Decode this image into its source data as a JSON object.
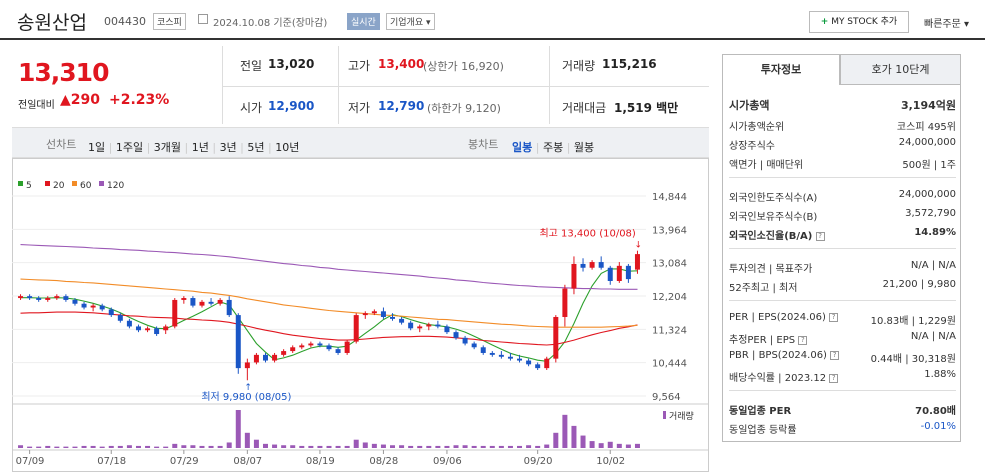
{
  "header": {
    "name": "송원산업",
    "code": "004430",
    "market": "코스피",
    "date_text": "2024.10.08 기준(장마감)",
    "realtime": "실시간",
    "corp_overview": "기업개요 ▾",
    "mystock_plus": "+",
    "mystock": "MY STOCK 추가",
    "quick_order": "빠른주문 ▾"
  },
  "quote": {
    "price": "13,310",
    "change_label": "전일대비",
    "change_value": "▲290",
    "change_pct": "+2.23%",
    "prev_label": "전일",
    "prev": "13,020",
    "high_label": "고가",
    "high": "13,400",
    "upper_limit": "(상한가 16,920)",
    "volume_label": "거래량",
    "volume": "115,216",
    "open_label": "시가",
    "open": "12,900",
    "low_label": "저가",
    "low": "12,790",
    "lower_limit": "(하한가 9,120)",
    "amount_label": "거래대금",
    "amount": "1,519 백만"
  },
  "period_bar": {
    "line_label": "선차트",
    "line_items": [
      "1일",
      "1주일",
      "3개월",
      "1년",
      "3년",
      "5년",
      "10년"
    ],
    "candle_label": "봉차트",
    "candle_items": [
      "일봉",
      "주봉",
      "월봉"
    ],
    "candle_selected": 0
  },
  "chart_data": {
    "type": "candlestick",
    "legend": [
      "5",
      "20",
      "60",
      "120"
    ],
    "legend_colors": [
      "#2ca02c",
      "#e0161f",
      "#f28c28",
      "#9b59b6"
    ],
    "y_ticks": [
      "14,844",
      "13,964",
      "13,084",
      "12,204",
      "11,324",
      "10,444",
      "9,564"
    ],
    "ylim": [
      9564,
      14844
    ],
    "x_ticks": [
      "07/09",
      "07/18",
      "07/29",
      "08/07",
      "08/19",
      "08/28",
      "09/06",
      "09/20",
      "10/02"
    ],
    "high_annotation": "최고 13,400 (10/08)",
    "low_annotation": "최저 9,980 (08/05)",
    "volume_label": "거래량",
    "candles": [
      [
        12150,
        12250,
        12100,
        12200
      ],
      [
        12200,
        12250,
        12100,
        12150
      ],
      [
        12150,
        12200,
        12050,
        12100
      ],
      [
        12100,
        12200,
        12050,
        12150
      ],
      [
        12150,
        12250,
        12100,
        12200
      ],
      [
        12200,
        12250,
        12050,
        12100
      ],
      [
        12100,
        12150,
        11950,
        12000
      ],
      [
        12000,
        12050,
        11850,
        11900
      ],
      [
        11900,
        12000,
        11800,
        11950
      ],
      [
        11950,
        12000,
        11800,
        11850
      ],
      [
        11850,
        11900,
        11650,
        11700
      ],
      [
        11700,
        11750,
        11500,
        11550
      ],
      [
        11550,
        11600,
        11350,
        11400
      ],
      [
        11400,
        11450,
        11250,
        11300
      ],
      [
        11300,
        11400,
        11250,
        11350
      ],
      [
        11350,
        11400,
        11150,
        11200
      ],
      [
        11300,
        11450,
        11200,
        11400
      ],
      [
        11400,
        12150,
        11350,
        12100
      ],
      [
        12100,
        12200,
        12000,
        12150
      ],
      [
        12150,
        12200,
        11900,
        11950
      ],
      [
        11950,
        12100,
        11900,
        12050
      ],
      [
        12050,
        12150,
        11950,
        12000
      ],
      [
        12000,
        12150,
        11950,
        12100
      ],
      [
        12100,
        12200,
        11650,
        11700
      ],
      [
        11700,
        11750,
        10150,
        10300
      ],
      [
        10300,
        10550,
        9980,
        10450
      ],
      [
        10450,
        10700,
        10400,
        10650
      ],
      [
        10650,
        10700,
        10450,
        10500
      ],
      [
        10500,
        10700,
        10450,
        10650
      ],
      [
        10650,
        10800,
        10600,
        10750
      ],
      [
        10750,
        10900,
        10700,
        10850
      ],
      [
        10850,
        10950,
        10800,
        10900
      ],
      [
        10900,
        11000,
        10850,
        10950
      ],
      [
        10950,
        11000,
        10850,
        10900
      ],
      [
        10900,
        10950,
        10750,
        10800
      ],
      [
        10800,
        10850,
        10650,
        10700
      ],
      [
        10700,
        11050,
        10650,
        11000
      ],
      [
        11000,
        11750,
        10950,
        11700
      ],
      [
        11700,
        11800,
        11600,
        11750
      ],
      [
        11750,
        11850,
        11700,
        11800
      ],
      [
        11800,
        11900,
        11600,
        11650
      ],
      [
        11650,
        11750,
        11550,
        11600
      ],
      [
        11600,
        11650,
        11450,
        11500
      ],
      [
        11500,
        11550,
        11300,
        11350
      ],
      [
        11350,
        11450,
        11250,
        11400
      ],
      [
        11400,
        11500,
        11300,
        11450
      ],
      [
        11450,
        11550,
        11350,
        11400
      ],
      [
        11400,
        11450,
        11200,
        11250
      ],
      [
        11250,
        11300,
        11050,
        11100
      ],
      [
        11100,
        11150,
        10900,
        10950
      ],
      [
        10950,
        11000,
        10800,
        10850
      ],
      [
        10850,
        10900,
        10650,
        10700
      ],
      [
        10700,
        10750,
        10600,
        10650
      ],
      [
        10650,
        10750,
        10550,
        10600
      ],
      [
        10600,
        10700,
        10500,
        10550
      ],
      [
        10550,
        10650,
        10450,
        10500
      ],
      [
        10500,
        10550,
        10350,
        10400
      ],
      [
        10400,
        10450,
        10250,
        10300
      ],
      [
        10300,
        10600,
        10250,
        10550
      ],
      [
        10550,
        11700,
        10450,
        11650
      ],
      [
        11650,
        12500,
        11400,
        12400
      ],
      [
        12400,
        13250,
        12250,
        13050
      ],
      [
        13050,
        13200,
        12850,
        12950
      ],
      [
        12950,
        13150,
        12900,
        13100
      ],
      [
        13100,
        13250,
        12900,
        12950
      ],
      [
        12950,
        13000,
        12500,
        12600
      ],
      [
        12600,
        13100,
        12550,
        13000
      ],
      [
        13000,
        13050,
        12550,
        12650
      ],
      [
        12900,
        13400,
        12790,
        13310
      ]
    ],
    "ma": [
      [
        12160,
        12160,
        12150,
        12150,
        12160,
        12150,
        12120,
        12070,
        12010,
        11940,
        11860,
        11760,
        11640,
        11530,
        11430,
        11350,
        11340,
        11440,
        11560,
        11670,
        11790,
        11920,
        12050,
        11970,
        11630,
        11290,
        10950,
        10720,
        10520,
        10570,
        10640,
        10740,
        10830,
        10880,
        10880,
        10850,
        10880,
        11040,
        11220,
        11390,
        11580,
        11710,
        11660,
        11580,
        11510,
        11450,
        11420,
        11390,
        11330,
        11250,
        11140,
        11030,
        10910,
        10800,
        10690,
        10620,
        10570,
        10510,
        10480,
        10690,
        11000,
        11480,
        12010,
        12470,
        12800,
        12920,
        12920,
        12860,
        12870
      ],
      [
        11750,
        11760,
        11760,
        11770,
        11780,
        11780,
        11780,
        11770,
        11760,
        11740,
        11720,
        11700,
        11680,
        11670,
        11650,
        11640,
        11630,
        11620,
        11600,
        11590,
        11570,
        11560,
        11540,
        11510,
        11460,
        11410,
        11350,
        11300,
        11260,
        11210,
        11170,
        11140,
        11110,
        11080,
        11060,
        11040,
        11040,
        11050,
        11070,
        11090,
        11110,
        11120,
        11130,
        11130,
        11140,
        11140,
        11130,
        11120,
        11100,
        11080,
        11060,
        11030,
        11010,
        10990,
        10970,
        10950,
        10940,
        10920,
        10910,
        10930,
        10980,
        11040,
        11110,
        11180,
        11240,
        11290,
        11350,
        11390,
        11440
      ],
      [
        12650,
        12640,
        12630,
        12620,
        12610,
        12590,
        12580,
        12560,
        12550,
        12530,
        12510,
        12490,
        12470,
        12450,
        12430,
        12410,
        12390,
        12370,
        12350,
        12330,
        12300,
        12280,
        12250,
        12220,
        12180,
        12130,
        12090,
        12050,
        12010,
        11970,
        11940,
        11910,
        11880,
        11850,
        11820,
        11800,
        11780,
        11760,
        11740,
        11720,
        11700,
        11690,
        11670,
        11650,
        11630,
        11610,
        11590,
        11580,
        11560,
        11540,
        11520,
        11500,
        11480,
        11460,
        11450,
        11430,
        11410,
        11400,
        11390,
        11380,
        11380,
        11380,
        11380,
        11380,
        11380,
        11390,
        11400,
        11410,
        11430
      ],
      [
        13560,
        13550,
        13540,
        13530,
        13520,
        13510,
        13500,
        13490,
        13470,
        13460,
        13450,
        13430,
        13420,
        13410,
        13390,
        13380,
        13360,
        13350,
        13330,
        13310,
        13300,
        13280,
        13260,
        13240,
        13210,
        13180,
        13150,
        13120,
        13090,
        13060,
        13040,
        13010,
        12990,
        12960,
        12940,
        12910,
        12890,
        12870,
        12850,
        12830,
        12810,
        12790,
        12770,
        12750,
        12730,
        12700,
        12680,
        12660,
        12630,
        12610,
        12590,
        12560,
        12540,
        12520,
        12500,
        12480,
        12470,
        12450,
        12440,
        12430,
        12420,
        12410,
        12400,
        12400,
        12390,
        12390,
        12380,
        12380,
        12380
      ]
    ],
    "volumes": [
      4,
      2,
      2,
      3,
      2,
      2,
      2,
      3,
      3,
      2,
      3,
      3,
      4,
      3,
      3,
      2,
      2,
      6,
      4,
      4,
      3,
      3,
      3,
      8,
      55,
      22,
      12,
      6,
      5,
      4,
      4,
      3,
      3,
      3,
      3,
      3,
      3,
      12,
      8,
      6,
      5,
      4,
      4,
      3,
      3,
      3,
      3,
      3,
      4,
      4,
      3,
      3,
      3,
      3,
      3,
      3,
      4,
      3,
      5,
      22,
      48,
      32,
      18,
      10,
      7,
      9,
      6,
      5,
      6
    ]
  },
  "panel": {
    "tab_active": "투자정보",
    "tab_other": "호가 10단계",
    "market_cap_label": "시가총액",
    "market_cap": "3,194억원",
    "cap_rank_label": "시가총액순위",
    "cap_rank": "코스피 495위",
    "listed_label": "상장주식수",
    "listed": "24,000,000",
    "par_label": "액면가 | 매매단위",
    "par": "500원 | 1주",
    "foreign_limit_label": "외국인한도주식수(A)",
    "foreign_limit": "24,000,000",
    "foreign_hold_label": "외국인보유주식수(B)",
    "foreign_hold": "3,572,790",
    "foreign_rate_label": "외국인소진율(B/A)",
    "foreign_rate": "14.89%",
    "opinion_label": "투자의견 | 목표주가",
    "opinion": "N/A | N/A",
    "w52_label": "52주최고 | 최저",
    "w52": "21,200 | 9,980",
    "per_label": "PER | EPS(2024.06)",
    "per": "10.83배 | 1,229원",
    "est_label": "추정PER | EPS",
    "est": "N/A | N/A",
    "pbr_label": "PBR | BPS(2024.06)",
    "pbr": "0.44배 | 30,318원",
    "div_label": "배당수익률 | 2023.12",
    "div": "1.88%",
    "ind_per_label": "동일업종 PER",
    "ind_per": "70.80배",
    "ind_rate_label": "동일업종 등락률",
    "ind_rate": "-0.01%"
  }
}
